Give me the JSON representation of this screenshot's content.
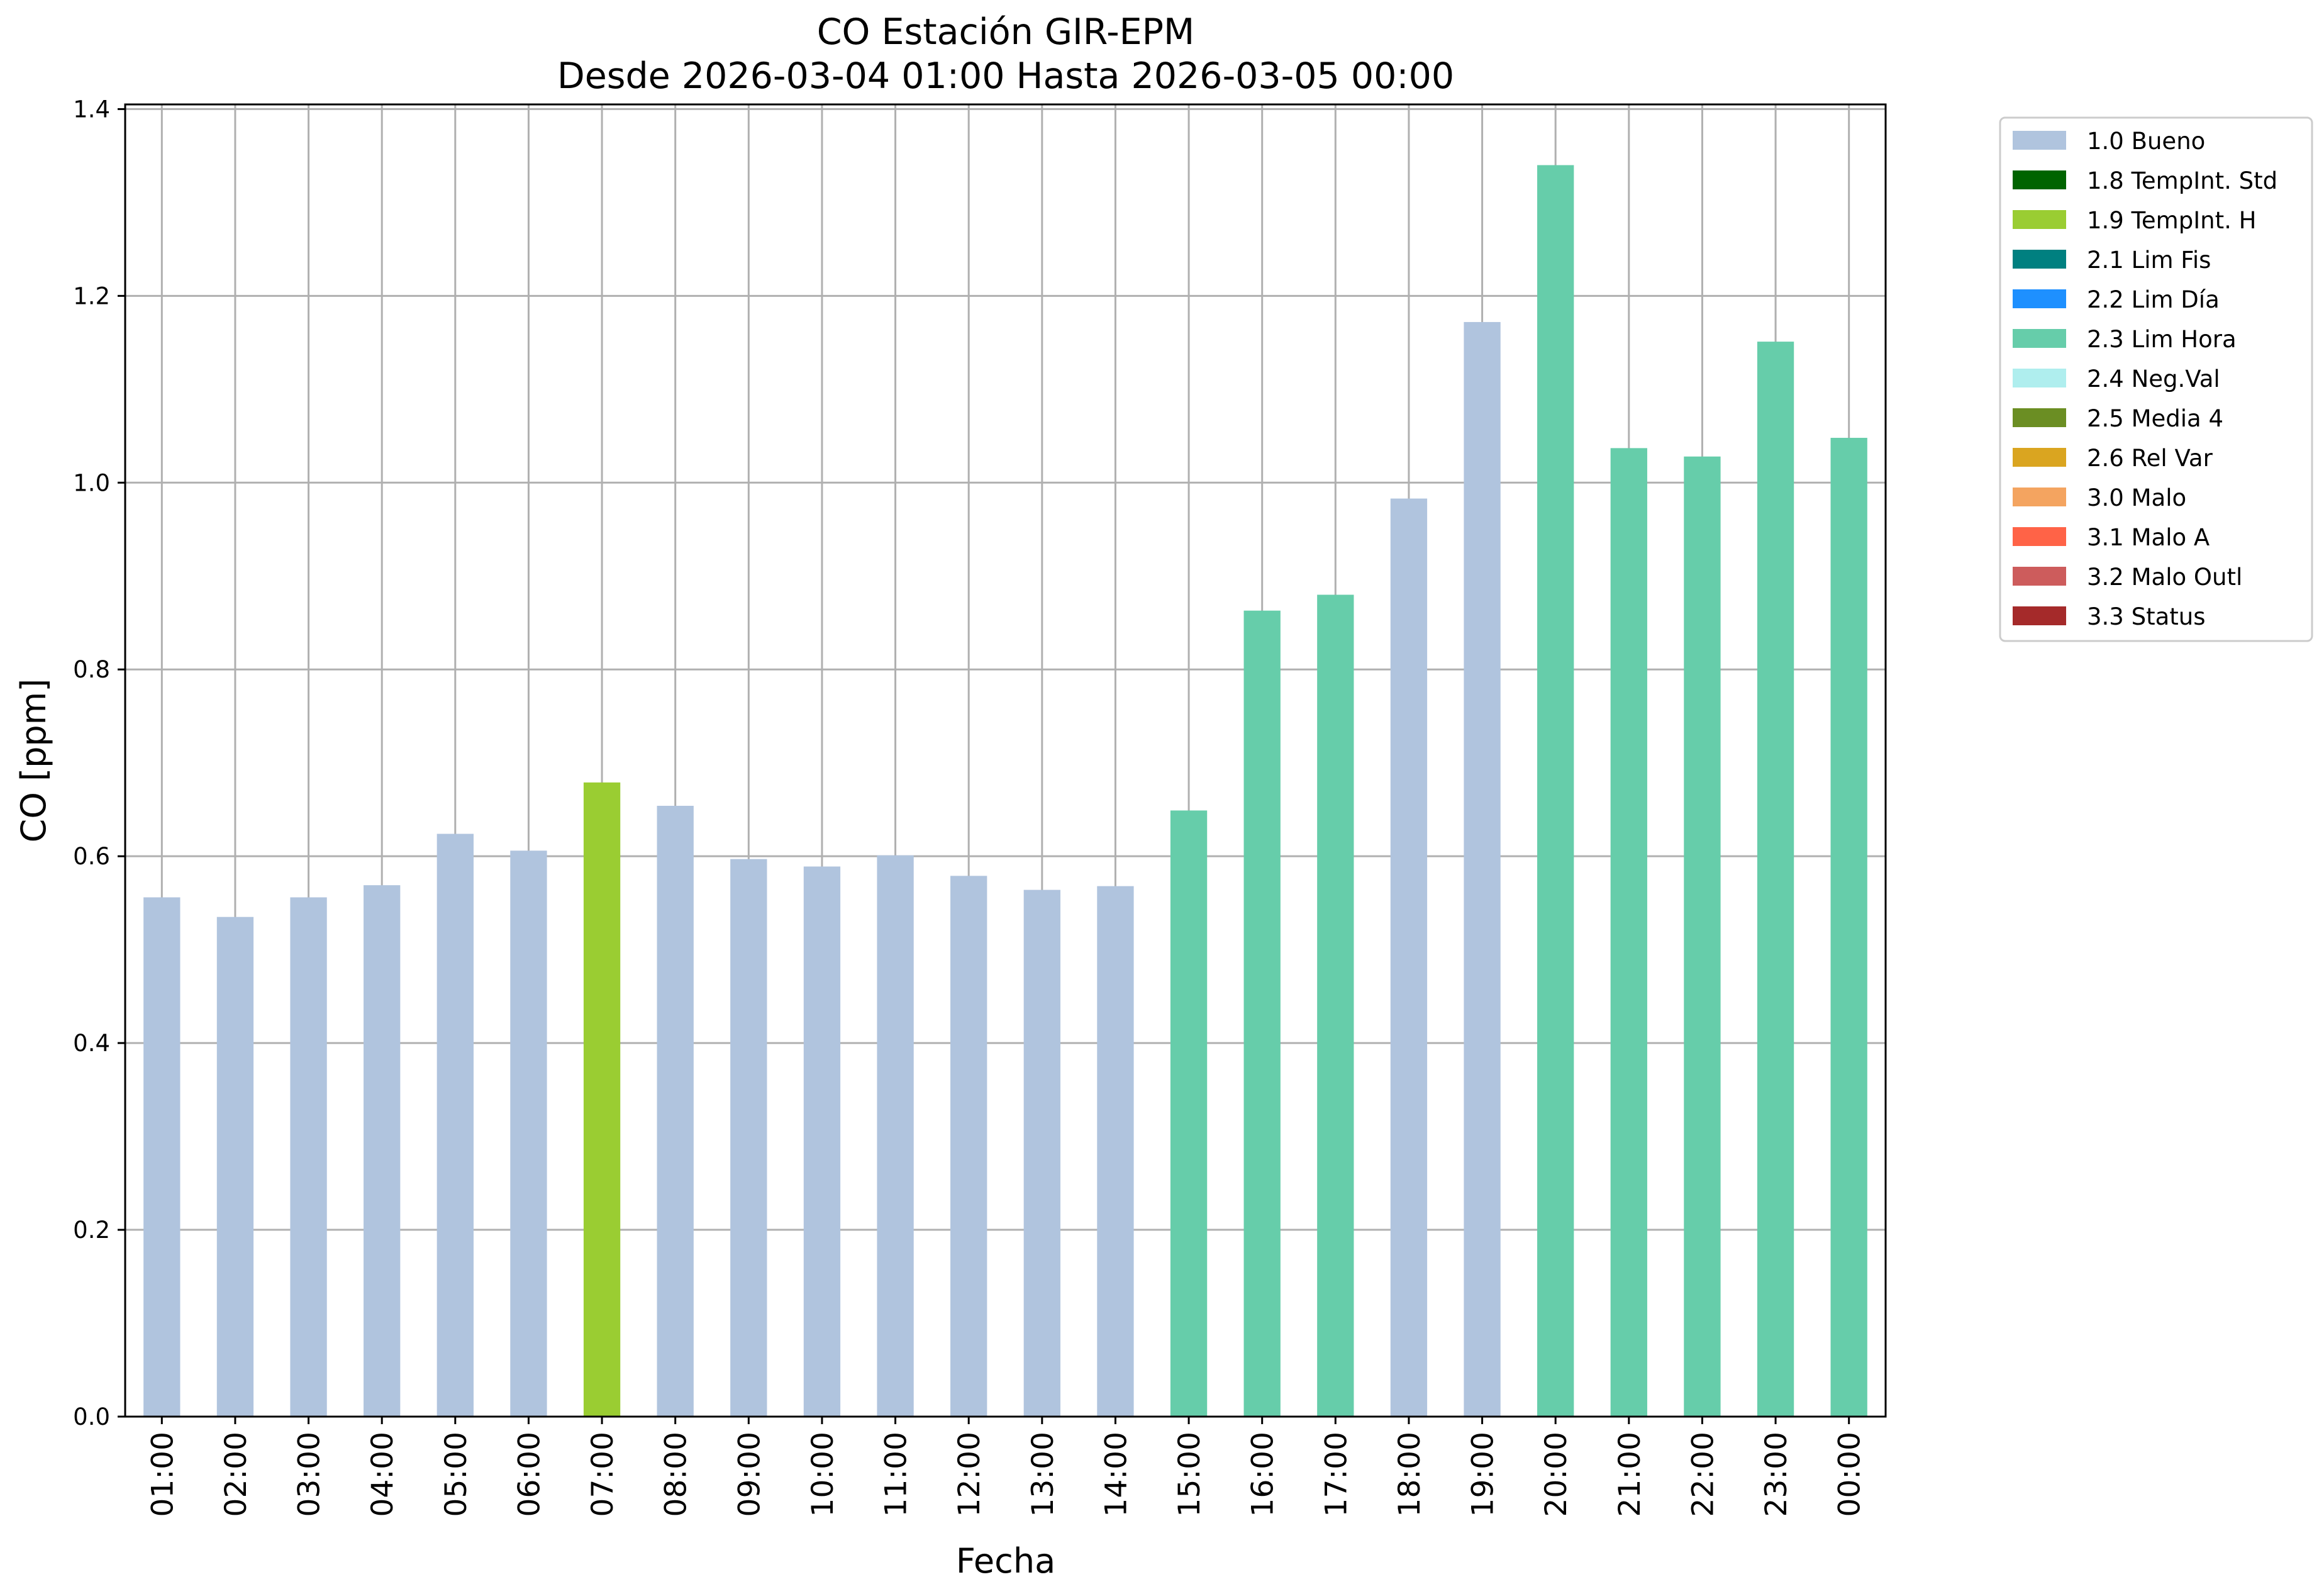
{
  "chart_data": {
    "type": "bar",
    "title": "CO Estación GIR-EPM",
    "subtitle": "Desde 2026-03-04 01:00 Hasta 2026-03-05 00:00",
    "xlabel": "Fecha",
    "ylabel": "CO [ppm]",
    "ylim": [
      0,
      1.405
    ],
    "yticks": [
      "0.0",
      "0.2",
      "0.4",
      "0.6",
      "0.8",
      "1.0",
      "1.2",
      "1.4"
    ],
    "grid": true,
    "legend_position": "outside-right",
    "categories": [
      "01:00",
      "02:00",
      "03:00",
      "04:00",
      "05:00",
      "06:00",
      "07:00",
      "08:00",
      "09:00",
      "10:00",
      "11:00",
      "12:00",
      "13:00",
      "14:00",
      "15:00",
      "16:00",
      "17:00",
      "18:00",
      "19:00",
      "20:00",
      "21:00",
      "22:00",
      "23:00",
      "00:00"
    ],
    "values": [
      0.556,
      0.535,
      0.556,
      0.569,
      0.624,
      0.606,
      0.679,
      0.654,
      0.597,
      0.589,
      0.601,
      0.579,
      0.564,
      0.568,
      0.649,
      0.863,
      0.88,
      0.983,
      1.172,
      1.34,
      1.037,
      1.028,
      1.151,
      1.048
    ],
    "flags": [
      "1.0 Bueno",
      "1.0 Bueno",
      "1.0 Bueno",
      "1.0 Bueno",
      "1.0 Bueno",
      "1.0 Bueno",
      "1.9 TempInt. H",
      "1.0 Bueno",
      "1.0 Bueno",
      "1.0 Bueno",
      "1.0 Bueno",
      "1.0 Bueno",
      "1.0 Bueno",
      "1.0 Bueno",
      "2.3 Lim Hora",
      "2.3 Lim Hora",
      "2.3 Lim Hora",
      "1.0 Bueno",
      "1.0 Bueno",
      "2.3 Lim Hora",
      "2.3 Lim Hora",
      "2.3 Lim Hora",
      "2.3 Lim Hora",
      "2.3 Lim Hora"
    ],
    "legend": [
      {
        "label": "1.0 Bueno",
        "color": "#b0c4de"
      },
      {
        "label": "1.8 TempInt. Std",
        "color": "#006400"
      },
      {
        "label": "1.9 TempInt. H",
        "color": "#9acd32"
      },
      {
        "label": "2.1 Lim Fis",
        "color": "#008080"
      },
      {
        "label": "2.2 Lim Día",
        "color": "#1e90ff"
      },
      {
        "label": "2.3 Lim Hora",
        "color": "#66cdaa"
      },
      {
        "label": "2.4 Neg.Val",
        "color": "#afeeee"
      },
      {
        "label": "2.5 Media 4",
        "color": "#6b8e23"
      },
      {
        "label": "2.6 Rel Var",
        "color": "#daa520"
      },
      {
        "label": "3.0 Malo",
        "color": "#f4a460"
      },
      {
        "label": "3.1 Malo A",
        "color": "#ff6347"
      },
      {
        "label": "3.2 Malo Outl",
        "color": "#cd5c5c"
      },
      {
        "label": "3.3 Status",
        "color": "#a52a2a"
      }
    ]
  }
}
